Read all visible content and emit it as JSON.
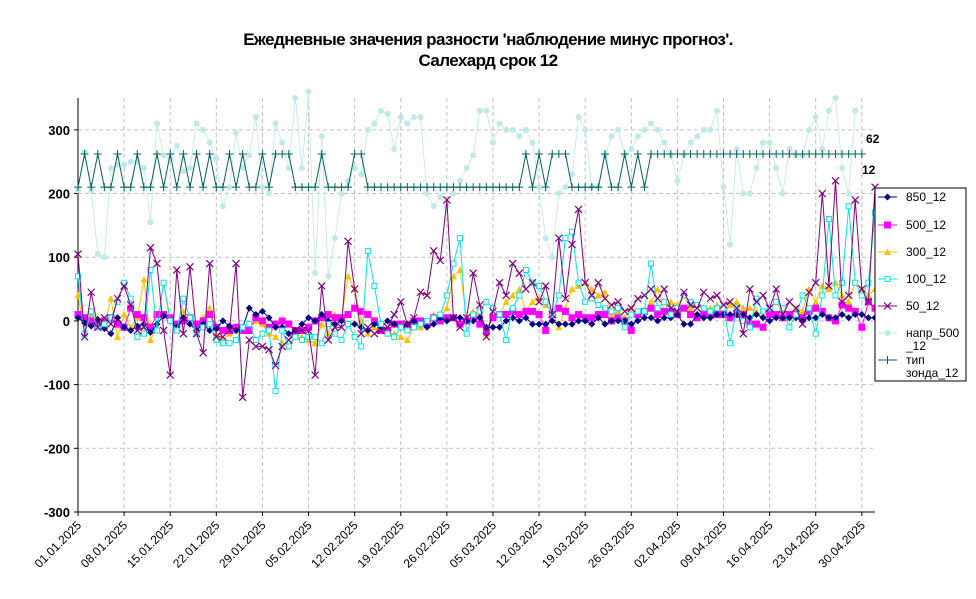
{
  "chart_data": {
    "type": "line",
    "title": "Ежедневные значения разности 'наблюдение минус прогноз'.",
    "subtitle": "Салехард    срок 12",
    "x_start": "2025-01-01",
    "x_end": "2025-04-30",
    "xticks": [
      "01.01.2025",
      "08.01.2025",
      "15.01.2025",
      "22.01.2025",
      "29.01.2025",
      "05.02.2025",
      "12.02.2025",
      "19.02.2025",
      "26.02.2025",
      "05.03.2025",
      "12.03.2025",
      "19.03.2025",
      "26.03.2025",
      "02.04.2025",
      "09.04.2025",
      "16.04.2025",
      "23.04.2025",
      "30.04.2025"
    ],
    "ylim": [
      -300,
      350
    ],
    "yticks": [
      "300",
      "200",
      "100",
      "0",
      "-100",
      "-200",
      "-300"
    ],
    "grid": true,
    "legend_position": "right",
    "end_labels": [
      "62",
      "12"
    ],
    "series": [
      {
        "name": "850_12",
        "color": "#000080",
        "marker": "diamond",
        "values": [
          5,
          -3,
          -8,
          2,
          -12,
          -20,
          5,
          -10,
          -15,
          -8,
          -5,
          -18,
          -5,
          8,
          0,
          -10,
          5,
          -5,
          -15,
          -5,
          -15,
          -12,
          0,
          -8,
          -15,
          -10,
          20,
          10,
          15,
          5,
          -10,
          -10,
          -20,
          -15,
          -5,
          5,
          0,
          10,
          0,
          -5,
          0,
          -5,
          -5,
          -10,
          -15,
          -5,
          -10,
          0,
          -5,
          -10,
          -5,
          0,
          -5,
          -10,
          -5,
          5,
          0,
          5,
          5,
          0,
          0,
          5,
          -10,
          -10,
          -10,
          0,
          5,
          0,
          5,
          -5,
          -5,
          -5,
          0,
          -5,
          -5,
          -5,
          0,
          0,
          -5,
          5,
          -5,
          0,
          0,
          0,
          -5,
          0,
          5,
          5,
          0,
          5,
          5,
          10,
          -5,
          -5,
          10,
          5,
          5,
          10,
          10,
          10,
          10,
          10,
          5,
          10,
          5,
          0,
          5,
          5,
          5,
          5,
          0,
          5,
          5,
          10,
          5,
          5,
          10,
          5,
          10,
          10,
          5,
          5
        ]
      },
      {
        "name": "500_12",
        "color": "#ff00ff",
        "marker": "square",
        "values": [
          10,
          5,
          0,
          -8,
          0,
          5,
          -5,
          -10,
          20,
          10,
          5,
          -10,
          10,
          10,
          5,
          -5,
          0,
          5,
          -5,
          0,
          10,
          -10,
          -15,
          -15,
          -10,
          -15,
          -15,
          5,
          0,
          -10,
          -5,
          0,
          -5,
          -15,
          -15,
          -10,
          0,
          5,
          10,
          5,
          5,
          10,
          20,
          15,
          10,
          0,
          -15,
          -15,
          -5,
          -5,
          -10,
          0,
          0,
          -5,
          5,
          0,
          5,
          5,
          -5,
          0,
          5,
          -5,
          -15,
          5,
          10,
          10,
          15,
          10,
          15,
          15,
          10,
          -15,
          10,
          20,
          15,
          5,
          10,
          5,
          5,
          10,
          10,
          0,
          5,
          0,
          -15,
          10,
          15,
          20,
          10,
          15,
          15,
          10,
          20,
          10,
          5,
          10,
          10,
          10,
          10,
          5,
          10,
          10,
          -5,
          -5,
          -10,
          10,
          10,
          5,
          10,
          10,
          5,
          15,
          20,
          15,
          5,
          0,
          25,
          20,
          15,
          -10,
          30,
          20,
          20,
          20
        ]
      },
      {
        "name": "300_12",
        "color": "#ffc000",
        "marker": "triangle",
        "values": [
          40,
          -20,
          10,
          5,
          -10,
          35,
          -25,
          10,
          -10,
          5,
          65,
          -30,
          -10,
          60,
          5,
          -10,
          15,
          5,
          -15,
          5,
          20,
          -20,
          -30,
          -20,
          -15,
          -15,
          -10,
          0,
          -5,
          -20,
          -25,
          -35,
          -40,
          -20,
          -25,
          -30,
          -35,
          -5,
          -20,
          10,
          5,
          70,
          50,
          0,
          -20,
          -10,
          -15,
          -20,
          -20,
          -25,
          -30,
          -10,
          -10,
          0,
          10,
          5,
          20,
          70,
          80,
          5,
          15,
          10,
          -20,
          20,
          10,
          30,
          40,
          50,
          15,
          30,
          35,
          25,
          15,
          -10,
          20,
          50,
          55,
          60,
          50,
          40,
          45,
          10,
          15,
          5,
          20,
          10,
          15,
          30,
          50,
          15,
          30,
          25,
          40,
          20,
          25,
          20,
          20,
          25,
          10,
          25,
          30,
          20,
          20,
          15,
          10,
          20,
          30,
          10,
          5,
          20,
          15,
          50,
          30,
          55,
          50,
          60,
          40,
          30,
          60,
          50,
          40,
          50,
          60,
          45
        ]
      },
      {
        "name": "100_12",
        "color": "#00e5e5",
        "marker": "square-open",
        "values": [
          70,
          -20,
          15,
          -10,
          -5,
          5,
          30,
          60,
          35,
          -25,
          -20,
          80,
          -15,
          60,
          0,
          -15,
          35,
          5,
          -20,
          -10,
          -5,
          -30,
          -35,
          -35,
          -30,
          -10,
          -5,
          -30,
          -20,
          -15,
          -110,
          -15,
          -40,
          -25,
          -30,
          -25,
          -25,
          -35,
          -5,
          -20,
          -30,
          -5,
          -25,
          -40,
          110,
          55,
          -5,
          -20,
          -25,
          -10,
          -15,
          -10,
          -5,
          0,
          5,
          10,
          40,
          90,
          130,
          -20,
          10,
          15,
          30,
          20,
          10,
          -30,
          20,
          40,
          80,
          60,
          55,
          30,
          10,
          40,
          130,
          140,
          60,
          30,
          35,
          25,
          20,
          15,
          20,
          -10,
          10,
          15,
          15,
          90,
          20,
          30,
          10,
          20,
          40,
          30,
          25,
          20,
          15,
          20,
          20,
          -35,
          20,
          0,
          -10,
          35,
          15,
          20,
          30,
          20,
          -10,
          10,
          40,
          20,
          -20,
          40,
          160,
          40,
          60,
          180,
          60,
          40,
          60,
          170,
          40,
          180
        ]
      },
      {
        "name": "50_12",
        "color": "#800080",
        "marker": "x",
        "values": [
          105,
          -25,
          45,
          -10,
          5,
          -5,
          35,
          55,
          25,
          -15,
          -10,
          115,
          90,
          -15,
          -85,
          80,
          -20,
          85,
          -20,
          -50,
          90,
          -25,
          -25,
          -15,
          90,
          -120,
          -30,
          -40,
          -40,
          -45,
          -70,
          -40,
          -30,
          -15,
          -15,
          -15,
          -85,
          55,
          -30,
          -10,
          -10,
          125,
          50,
          -20,
          -10,
          -20,
          -15,
          -10,
          10,
          30,
          -5,
          5,
          45,
          40,
          110,
          95,
          190,
          5,
          -10,
          5,
          75,
          25,
          -25,
          15,
          60,
          40,
          90,
          75,
          50,
          60,
          30,
          55,
          10,
          130,
          35,
          120,
          175,
          60,
          40,
          60,
          35,
          25,
          30,
          15,
          20,
          35,
          40,
          50,
          35,
          50,
          20,
          15,
          45,
          25,
          20,
          45,
          35,
          40,
          25,
          30,
          20,
          -20,
          50,
          30,
          40,
          20,
          50,
          10,
          30,
          20,
          -5,
          45,
          60,
          200,
          55,
          220,
          30,
          40,
          190,
          50,
          30,
          210,
          45,
          60
        ]
      },
      {
        "name": "напр_500_12",
        "color": "#bfe8e6",
        "marker": "dot",
        "values": [
          205,
          265,
          205,
          105,
          100,
          240,
          245,
          245,
          250,
          250,
          240,
          155,
          310,
          260,
          255,
          275,
          235,
          240,
          310,
          300,
          280,
          255,
          180,
          210,
          295,
          240,
          260,
          320,
          210,
          200,
          310,
          280,
          240,
          350,
          240,
          360,
          75,
          290,
          70,
          130,
          200,
          220,
          240,
          230,
          300,
          310,
          330,
          325,
          270,
          320,
          310,
          320,
          320,
          200,
          180,
          195,
          180,
          200,
          220,
          240,
          260,
          330,
          330,
          280,
          310,
          300,
          300,
          290,
          300,
          280,
          210,
          130,
          100,
          200,
          210,
          230,
          320,
          300,
          210,
          210,
          260,
          290,
          300,
          260,
          270,
          290,
          300,
          310,
          300,
          280,
          260,
          220,
          260,
          280,
          290,
          300,
          300,
          330,
          210,
          120,
          270,
          200,
          200,
          240,
          280,
          280,
          240,
          200,
          270,
          260,
          260,
          300,
          320,
          270,
          330,
          350,
          240,
          200,
          330
        ]
      },
      {
        "name": "тип зонда_12",
        "color": "#006060",
        "marker": "plus",
        "values": [
          210,
          262,
          210,
          262,
          210,
          210,
          262,
          210,
          210,
          262,
          210,
          210,
          262,
          210,
          262,
          210,
          262,
          210,
          262,
          210,
          262,
          210,
          210,
          262,
          210,
          262,
          210,
          210,
          262,
          210,
          262,
          262,
          262,
          210,
          210,
          210,
          210,
          262,
          210,
          210,
          210,
          210,
          262,
          262,
          210,
          210,
          210,
          210,
          210,
          210,
          210,
          210,
          210,
          210,
          210,
          210,
          210,
          210,
          210,
          210,
          210,
          210,
          210,
          210,
          210,
          210,
          210,
          210,
          262,
          210,
          262,
          210,
          262,
          262,
          262,
          210,
          210,
          210,
          210,
          210,
          262,
          210,
          210,
          262,
          210,
          262,
          210,
          262,
          262,
          262,
          262,
          262,
          262,
          262,
          262,
          262,
          262,
          262,
          262,
          262,
          262,
          262,
          262,
          262,
          262,
          262,
          262,
          262,
          262,
          262,
          262,
          262,
          262,
          262,
          262,
          262,
          262,
          262,
          262,
          262
        ]
      }
    ]
  }
}
